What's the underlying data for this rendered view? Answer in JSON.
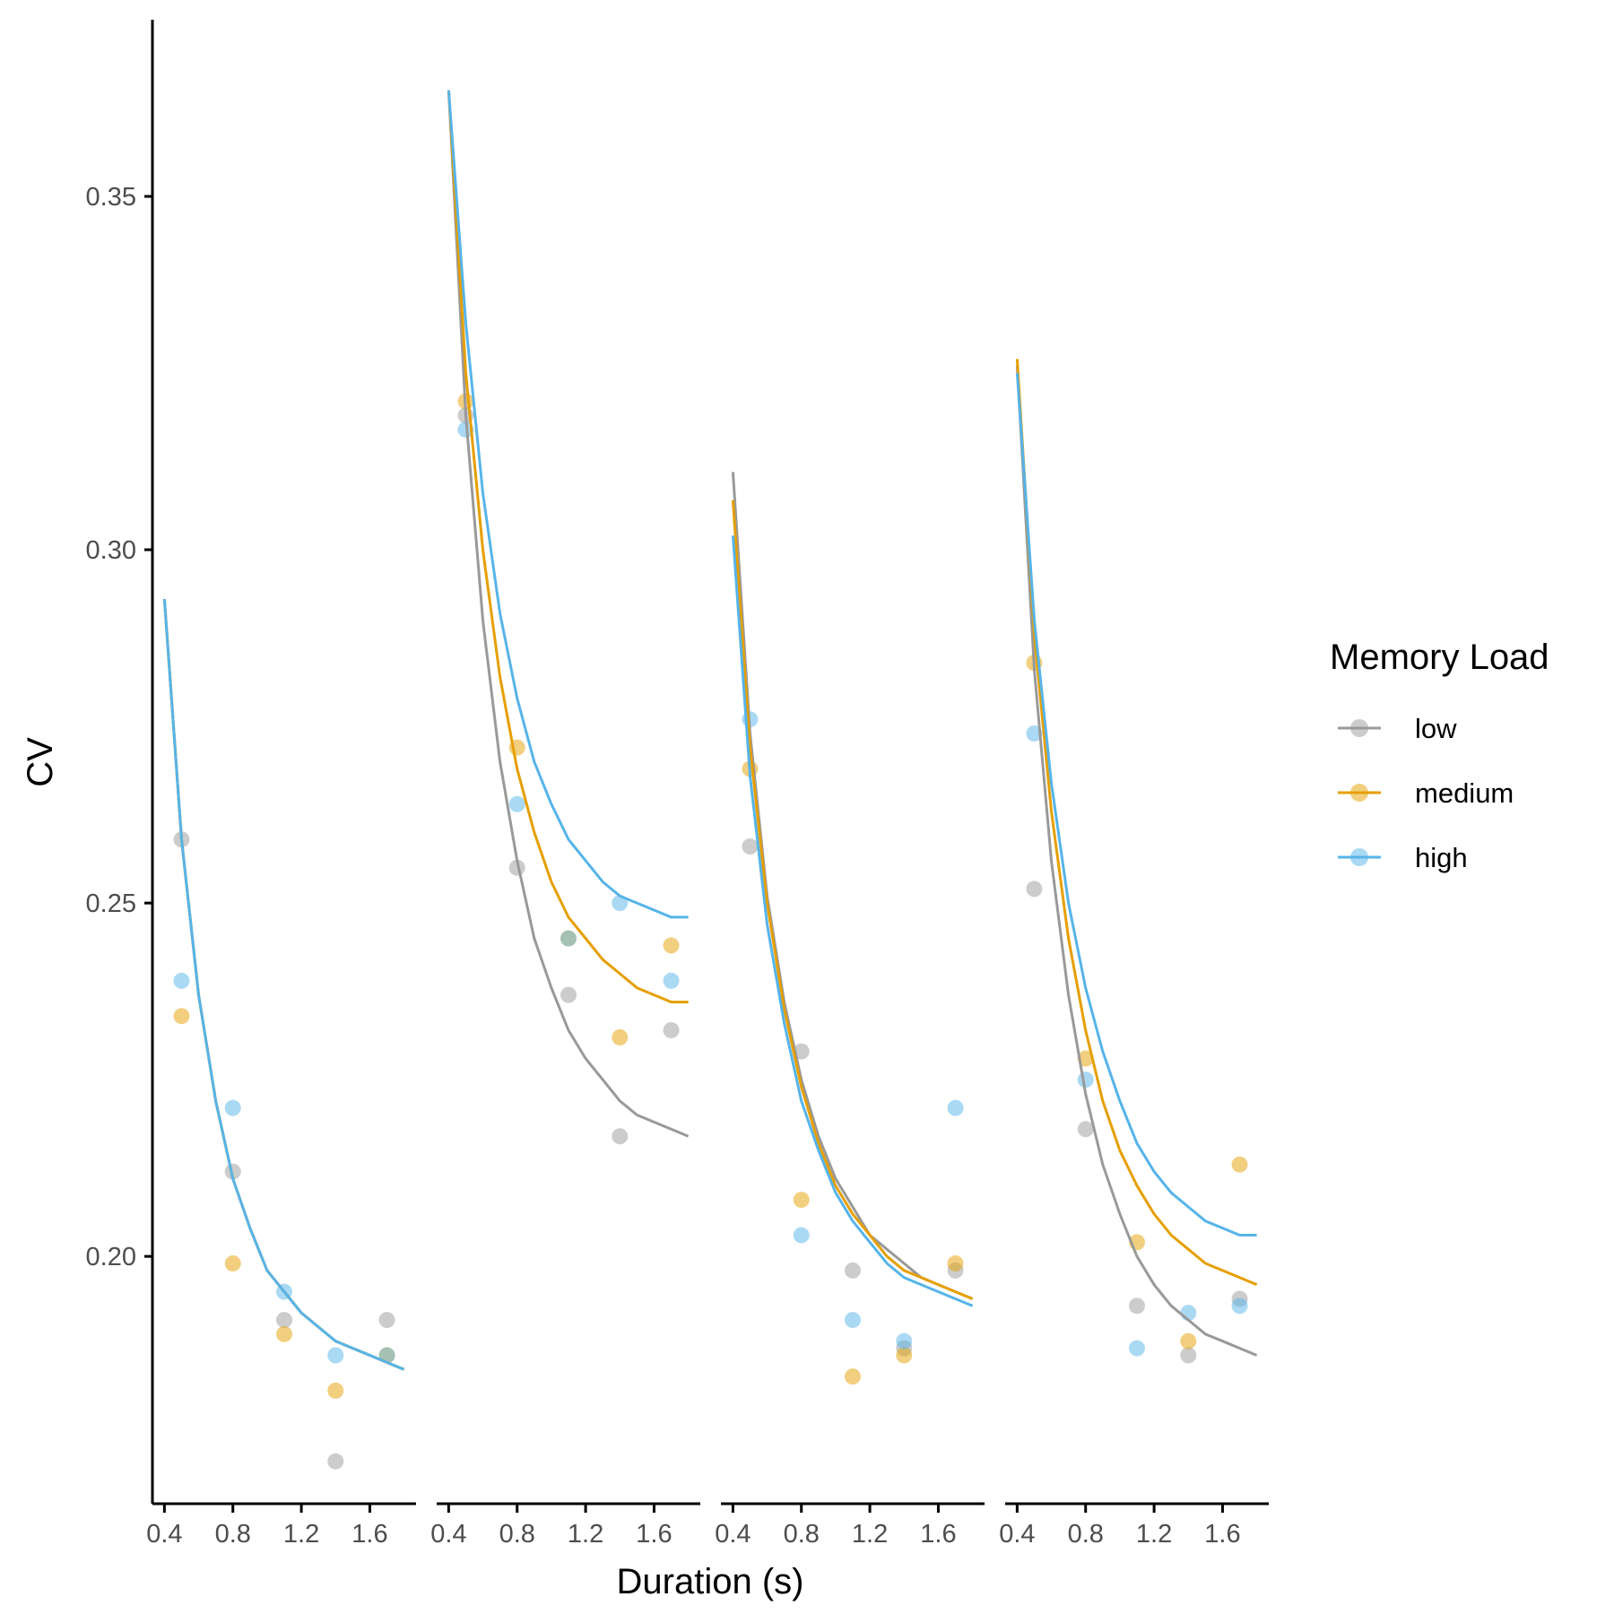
{
  "chart_data": {
    "type": "scatter",
    "ylabel": "CV",
    "xlabel": "Duration (s)",
    "legend_title": "Memory Load",
    "legend_position": "right",
    "ylim": [
      0.165,
      0.375
    ],
    "xlim": [
      0.33,
      1.87
    ],
    "yticks": [
      {
        "value": 0.35,
        "label": "0.35"
      },
      {
        "value": 0.3,
        "label": "0.30"
      },
      {
        "value": 0.25,
        "label": "0.25"
      },
      {
        "value": 0.2,
        "label": "0.20"
      }
    ],
    "xticks": [
      {
        "value": 0.4,
        "label": "0.4"
      },
      {
        "value": 0.8,
        "label": "0.8"
      },
      {
        "value": 1.2,
        "label": "1.2"
      },
      {
        "value": 1.6,
        "label": "1.6"
      }
    ],
    "series_colors": {
      "low": "#999999",
      "medium": "#E69F00",
      "high": "#56B4E9"
    },
    "legend": [
      {
        "key": "low",
        "label": "low"
      },
      {
        "key": "medium",
        "label": "medium"
      },
      {
        "key": "high",
        "label": "high"
      }
    ],
    "panels": [
      {
        "points": {
          "low": [
            [
              0.5,
              0.259
            ],
            [
              0.8,
              0.212
            ],
            [
              1.1,
              0.191
            ],
            [
              1.4,
              0.171
            ],
            [
              1.7,
              0.191
            ]
          ],
          "medium": [
            [
              0.5,
              0.234
            ],
            [
              0.8,
              0.199
            ],
            [
              1.1,
              0.189
            ],
            [
              1.4,
              0.181
            ],
            [
              1.7,
              0.186
            ]
          ],
          "high": [
            [
              0.5,
              0.239
            ],
            [
              0.8,
              0.221
            ],
            [
              1.1,
              0.195
            ],
            [
              1.4,
              0.186
            ],
            [
              1.7,
              0.186
            ]
          ]
        },
        "curves": {
          "low": [
            [
              0.4,
              0.293
            ],
            [
              0.5,
              0.259
            ],
            [
              0.6,
              0.237
            ],
            [
              0.7,
              0.222
            ],
            [
              0.8,
              0.211
            ],
            [
              0.9,
              0.204
            ],
            [
              1.0,
              0.198
            ],
            [
              1.1,
              0.195
            ],
            [
              1.2,
              0.192
            ],
            [
              1.3,
              0.19
            ],
            [
              1.4,
              0.188
            ],
            [
              1.5,
              0.187
            ],
            [
              1.6,
              0.186
            ],
            [
              1.7,
              0.185
            ],
            [
              1.8,
              0.184
            ]
          ],
          "medium": [
            [
              0.4,
              0.293
            ],
            [
              0.5,
              0.259
            ],
            [
              0.6,
              0.237
            ],
            [
              0.7,
              0.222
            ],
            [
              0.8,
              0.211
            ],
            [
              0.9,
              0.204
            ],
            [
              1.0,
              0.198
            ],
            [
              1.1,
              0.195
            ],
            [
              1.2,
              0.192
            ],
            [
              1.3,
              0.19
            ],
            [
              1.4,
              0.188
            ],
            [
              1.5,
              0.187
            ],
            [
              1.6,
              0.186
            ],
            [
              1.7,
              0.185
            ],
            [
              1.8,
              0.184
            ]
          ],
          "high": [
            [
              0.4,
              0.293
            ],
            [
              0.5,
              0.259
            ],
            [
              0.6,
              0.237
            ],
            [
              0.7,
              0.222
            ],
            [
              0.8,
              0.211
            ],
            [
              0.9,
              0.204
            ],
            [
              1.0,
              0.198
            ],
            [
              1.1,
              0.195
            ],
            [
              1.2,
              0.192
            ],
            [
              1.3,
              0.19
            ],
            [
              1.4,
              0.188
            ],
            [
              1.5,
              0.187
            ],
            [
              1.6,
              0.186
            ],
            [
              1.7,
              0.185
            ],
            [
              1.8,
              0.184
            ]
          ]
        }
      },
      {
        "points": {
          "low": [
            [
              0.5,
              0.319
            ],
            [
              0.8,
              0.255
            ],
            [
              1.1,
              0.237
            ],
            [
              1.4,
              0.217
            ],
            [
              1.7,
              0.232
            ]
          ],
          "medium": [
            [
              0.5,
              0.321
            ],
            [
              0.8,
              0.272
            ],
            [
              1.1,
              0.245
            ],
            [
              1.4,
              0.231
            ],
            [
              1.7,
              0.244
            ]
          ],
          "high": [
            [
              0.5,
              0.317
            ],
            [
              0.8,
              0.264
            ],
            [
              1.1,
              0.245
            ],
            [
              1.4,
              0.25
            ],
            [
              1.7,
              0.239
            ]
          ]
        },
        "curves": {
          "low": [
            [
              0.4,
              0.365
            ],
            [
              0.5,
              0.319
            ],
            [
              0.6,
              0.29
            ],
            [
              0.7,
              0.27
            ],
            [
              0.8,
              0.256
            ],
            [
              0.9,
              0.245
            ],
            [
              1.0,
              0.238
            ],
            [
              1.1,
              0.232
            ],
            [
              1.2,
              0.228
            ],
            [
              1.3,
              0.225
            ],
            [
              1.4,
              0.222
            ],
            [
              1.5,
              0.22
            ],
            [
              1.6,
              0.219
            ],
            [
              1.7,
              0.218
            ],
            [
              1.8,
              0.217
            ]
          ],
          "medium": [
            [
              0.4,
              0.365
            ],
            [
              0.5,
              0.325
            ],
            [
              0.6,
              0.3
            ],
            [
              0.7,
              0.282
            ],
            [
              0.8,
              0.269
            ],
            [
              0.9,
              0.26
            ],
            [
              1.0,
              0.253
            ],
            [
              1.1,
              0.248
            ],
            [
              1.2,
              0.245
            ],
            [
              1.3,
              0.242
            ],
            [
              1.4,
              0.24
            ],
            [
              1.5,
              0.238
            ],
            [
              1.6,
              0.237
            ],
            [
              1.7,
              0.236
            ],
            [
              1.8,
              0.236
            ]
          ],
          "high": [
            [
              0.4,
              0.365
            ],
            [
              0.5,
              0.332
            ],
            [
              0.6,
              0.308
            ],
            [
              0.7,
              0.291
            ],
            [
              0.8,
              0.279
            ],
            [
              0.9,
              0.27
            ],
            [
              1.0,
              0.264
            ],
            [
              1.1,
              0.259
            ],
            [
              1.2,
              0.256
            ],
            [
              1.3,
              0.253
            ],
            [
              1.4,
              0.251
            ],
            [
              1.5,
              0.25
            ],
            [
              1.6,
              0.249
            ],
            [
              1.7,
              0.248
            ],
            [
              1.8,
              0.248
            ]
          ]
        }
      },
      {
        "points": {
          "low": [
            [
              0.5,
              0.258
            ],
            [
              0.8,
              0.229
            ],
            [
              1.1,
              0.198
            ],
            [
              1.4,
              0.187
            ],
            [
              1.7,
              0.198
            ]
          ],
          "medium": [
            [
              0.5,
              0.269
            ],
            [
              0.8,
              0.208
            ],
            [
              1.1,
              0.183
            ],
            [
              1.4,
              0.186
            ],
            [
              1.7,
              0.199
            ]
          ],
          "high": [
            [
              0.5,
              0.276
            ],
            [
              0.8,
              0.203
            ],
            [
              1.1,
              0.191
            ],
            [
              1.4,
              0.188
            ],
            [
              1.7,
              0.221
            ]
          ]
        },
        "curves": {
          "low": [
            [
              0.4,
              0.311
            ],
            [
              0.5,
              0.274
            ],
            [
              0.6,
              0.251
            ],
            [
              0.7,
              0.236
            ],
            [
              0.8,
              0.225
            ],
            [
              0.9,
              0.217
            ],
            [
              1.0,
              0.211
            ],
            [
              1.1,
              0.207
            ],
            [
              1.2,
              0.203
            ],
            [
              1.3,
              0.201
            ],
            [
              1.4,
              0.199
            ],
            [
              1.5,
              0.197
            ],
            [
              1.6,
              0.196
            ],
            [
              1.7,
              0.195
            ],
            [
              1.8,
              0.194
            ]
          ],
          "medium": [
            [
              0.4,
              0.307
            ],
            [
              0.5,
              0.272
            ],
            [
              0.6,
              0.25
            ],
            [
              0.7,
              0.235
            ],
            [
              0.8,
              0.224
            ],
            [
              0.9,
              0.216
            ],
            [
              1.0,
              0.21
            ],
            [
              1.1,
              0.206
            ],
            [
              1.2,
              0.203
            ],
            [
              1.3,
              0.2
            ],
            [
              1.4,
              0.198
            ],
            [
              1.5,
              0.197
            ],
            [
              1.6,
              0.196
            ],
            [
              1.7,
              0.195
            ],
            [
              1.8,
              0.194
            ]
          ],
          "high": [
            [
              0.4,
              0.302
            ],
            [
              0.5,
              0.268
            ],
            [
              0.6,
              0.247
            ],
            [
              0.7,
              0.233
            ],
            [
              0.8,
              0.222
            ],
            [
              0.9,
              0.215
            ],
            [
              1.0,
              0.209
            ],
            [
              1.1,
              0.205
            ],
            [
              1.2,
              0.202
            ],
            [
              1.3,
              0.199
            ],
            [
              1.4,
              0.197
            ],
            [
              1.5,
              0.196
            ],
            [
              1.6,
              0.195
            ],
            [
              1.7,
              0.194
            ],
            [
              1.8,
              0.193
            ]
          ]
        }
      },
      {
        "points": {
          "low": [
            [
              0.5,
              0.252
            ],
            [
              0.8,
              0.218
            ],
            [
              1.1,
              0.193
            ],
            [
              1.4,
              0.186
            ],
            [
              1.7,
              0.194
            ]
          ],
          "medium": [
            [
              0.5,
              0.284
            ],
            [
              0.8,
              0.228
            ],
            [
              1.1,
              0.202
            ],
            [
              1.4,
              0.188
            ],
            [
              1.7,
              0.213
            ]
          ],
          "high": [
            [
              0.5,
              0.274
            ],
            [
              0.8,
              0.225
            ],
            [
              1.1,
              0.187
            ],
            [
              1.4,
              0.192
            ],
            [
              1.7,
              0.193
            ]
          ]
        },
        "curves": {
          "low": [
            [
              0.4,
              0.326
            ],
            [
              0.5,
              0.283
            ],
            [
              0.6,
              0.256
            ],
            [
              0.7,
              0.237
            ],
            [
              0.8,
              0.223
            ],
            [
              0.9,
              0.213
            ],
            [
              1.0,
              0.206
            ],
            [
              1.1,
              0.2
            ],
            [
              1.2,
              0.196
            ],
            [
              1.3,
              0.193
            ],
            [
              1.4,
              0.191
            ],
            [
              1.5,
              0.189
            ],
            [
              1.6,
              0.188
            ],
            [
              1.7,
              0.187
            ],
            [
              1.8,
              0.186
            ]
          ],
          "medium": [
            [
              0.4,
              0.327
            ],
            [
              0.5,
              0.288
            ],
            [
              0.6,
              0.263
            ],
            [
              0.7,
              0.245
            ],
            [
              0.8,
              0.232
            ],
            [
              0.9,
              0.222
            ],
            [
              1.0,
              0.215
            ],
            [
              1.1,
              0.21
            ],
            [
              1.2,
              0.206
            ],
            [
              1.3,
              0.203
            ],
            [
              1.4,
              0.201
            ],
            [
              1.5,
              0.199
            ],
            [
              1.6,
              0.198
            ],
            [
              1.7,
              0.197
            ],
            [
              1.8,
              0.196
            ]
          ],
          "high": [
            [
              0.4,
              0.325
            ],
            [
              0.5,
              0.29
            ],
            [
              0.6,
              0.267
            ],
            [
              0.7,
              0.25
            ],
            [
              0.8,
              0.238
            ],
            [
              0.9,
              0.229
            ],
            [
              1.0,
              0.222
            ],
            [
              1.1,
              0.216
            ],
            [
              1.2,
              0.212
            ],
            [
              1.3,
              0.209
            ],
            [
              1.4,
              0.207
            ],
            [
              1.5,
              0.205
            ],
            [
              1.6,
              0.204
            ],
            [
              1.7,
              0.203
            ],
            [
              1.8,
              0.203
            ]
          ]
        }
      }
    ]
  }
}
